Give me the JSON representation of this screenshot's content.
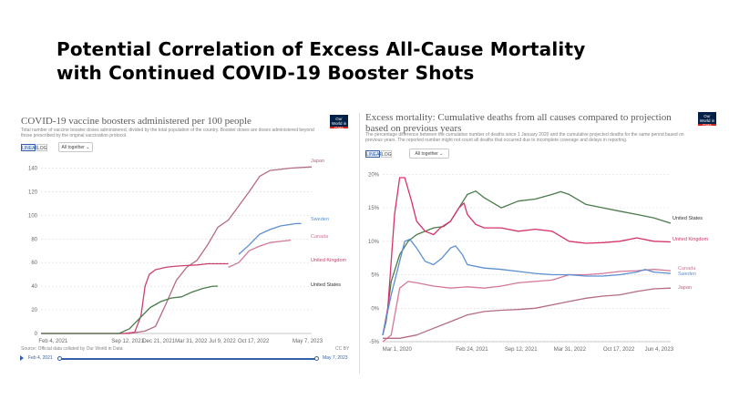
{
  "headline": {
    "line1": "Potential Correlation of Excess All-Cause Mortality",
    "line2": "with Continued COVID-19 Booster Shots"
  },
  "left": {
    "title": "COVID-19 vaccine boosters administered per 100 people",
    "subtitle": "Total number of vaccine booster doses administered, divided by the total population of the country. Booster doses are doses administered beyond those prescribed by the original vaccination protocol.",
    "btn_linear": "LINEAR",
    "btn_log": "LOG",
    "dropdown": "All together",
    "logo": "Our World in Data",
    "source": "Source: Official data collated by Our World in Data",
    "license": "CC BY",
    "slider_start": "Feb 4, 2021",
    "slider_end": "May 7, 2023",
    "colors": {
      "Japan": "#b56a88",
      "Sweden": "#5b8fcf",
      "Canada": "#d4789a",
      "United Kingdom": "#c9436e",
      "United States": "#4b7b4b"
    }
  },
  "right": {
    "title": "Excess mortality: Cumulative deaths from all causes compared to projection based on previous years",
    "subtitle": "The percentage difference between the cumulative number of deaths since 1 January 2020 and the cumulative projected deaths for the same period based on previous years. The reported number might not count all deaths that occurred due to incomplete coverage and delays in reporting.",
    "btn_linear": "LINEAR",
    "btn_log": "LOG",
    "dropdown": "All together",
    "logo": "Our World in Data",
    "colors": {
      "United States": "#4b7b4b",
      "United Kingdom": "#d6336c",
      "Canada": "#d4789a",
      "Sweden": "#5b8fcf",
      "Japan": "#b56a88"
    }
  },
  "chart_data": [
    {
      "type": "line",
      "title": "COVID-19 vaccine boosters administered per 100 people",
      "xlabel": "",
      "ylabel": "",
      "x_ticks": [
        "Feb 4, 2021",
        "Sep 12, 2021",
        "Dec 21, 2021",
        "Mar 31, 2022",
        "Jul 9, 2022",
        "Oct 17, 2022",
        "May 7, 2023"
      ],
      "y_ticks": [
        0,
        20,
        40,
        60,
        80,
        100,
        120,
        140
      ],
      "ylim": [
        0,
        145
      ],
      "grid": true,
      "legend": "inline-right",
      "series": [
        {
          "name": "Japan",
          "points": [
            [
              0,
              0
            ],
            [
              8.5,
              0
            ],
            [
              10,
              2
            ],
            [
              11,
              6
            ],
            [
              12,
              25
            ],
            [
              13,
              45
            ],
            [
              14,
              56
            ],
            [
              15,
              62
            ],
            [
              16,
              75
            ],
            [
              17,
              90
            ],
            [
              18,
              96
            ],
            [
              19,
              108
            ],
            [
              20,
              120
            ],
            [
              21,
              133
            ],
            [
              22,
              138
            ],
            [
              24,
              140
            ],
            [
              26,
              141
            ]
          ]
        },
        {
          "name": "Sweden",
          "points": [
            [
              19,
              67
            ],
            [
              20,
              75
            ],
            [
              21,
              84
            ],
            [
              22,
              88
            ],
            [
              23,
              91
            ],
            [
              24.5,
              93
            ],
            [
              25,
              93
            ]
          ]
        },
        {
          "name": "Canada",
          "points": [
            [
              18,
              56
            ],
            [
              19,
              60
            ],
            [
              20,
              70
            ],
            [
              21,
              74
            ],
            [
              22,
              77
            ],
            [
              23,
              78
            ],
            [
              24,
              79
            ]
          ]
        },
        {
          "name": "United Kingdom",
          "points": [
            [
              0,
              0
            ],
            [
              8,
              0
            ],
            [
              9,
              1
            ],
            [
              9.6,
              15
            ],
            [
              10,
              40
            ],
            [
              10.4,
              50
            ],
            [
              11,
              54
            ],
            [
              12,
              56
            ],
            [
              13,
              57
            ],
            [
              14,
              57.5
            ],
            [
              15,
              58
            ],
            [
              16,
              59
            ],
            [
              17,
              59
            ],
            [
              18,
              59
            ]
          ]
        },
        {
          "name": "United States",
          "points": [
            [
              0,
              0
            ],
            [
              7.5,
              0
            ],
            [
              8.5,
              4
            ],
            [
              9.5,
              13
            ],
            [
              10.5,
              22
            ],
            [
              11.5,
              27
            ],
            [
              12.5,
              30
            ],
            [
              13.5,
              31
            ],
            [
              14.5,
              35
            ],
            [
              15.5,
              38
            ],
            [
              16.5,
              40
            ],
            [
              17,
              40
            ]
          ]
        }
      ]
    },
    {
      "type": "line",
      "title": "Excess mortality: Cumulative deaths from all causes compared to projection based on previous years",
      "xlabel": "",
      "ylabel": "",
      "x_ticks": [
        "Mar 1, 2020",
        "Feb 24, 2021",
        "Sep 12, 2021",
        "Mar 31, 2022",
        "Oct 17, 2022",
        "Jun 4, 2023"
      ],
      "y_ticks": [
        "-5%",
        "0%",
        "5%",
        "10%",
        "15%",
        "20%"
      ],
      "ylim": [
        -5,
        21
      ],
      "grid": true,
      "legend": "inline-right",
      "series": [
        {
          "name": "United States",
          "points": [
            [
              0,
              -4
            ],
            [
              0.2,
              -2
            ],
            [
              0.5,
              4
            ],
            [
              1,
              8
            ],
            [
              1.5,
              10
            ],
            [
              2,
              11
            ],
            [
              3,
              12
            ],
            [
              3.6,
              12.2
            ],
            [
              4,
              13
            ],
            [
              4.5,
              15
            ],
            [
              5,
              17
            ],
            [
              5.5,
              17.5
            ],
            [
              6,
              16.5
            ],
            [
              7,
              15
            ],
            [
              8,
              16
            ],
            [
              9,
              16.3
            ],
            [
              10,
              17
            ],
            [
              10.5,
              17.4
            ],
            [
              11,
              17
            ],
            [
              12,
              15.5
            ],
            [
              13,
              15
            ],
            [
              14,
              14.5
            ],
            [
              15,
              14
            ],
            [
              16,
              13.5
            ],
            [
              17,
              12.7
            ]
          ]
        },
        {
          "name": "United Kingdom",
          "points": [
            [
              0,
              -4
            ],
            [
              0.3,
              0
            ],
            [
              0.7,
              14
            ],
            [
              1,
              19.5
            ],
            [
              1.3,
              19.5
            ],
            [
              1.7,
              16
            ],
            [
              2,
              13
            ],
            [
              2.5,
              11.5
            ],
            [
              3,
              11
            ],
            [
              3.4,
              12
            ],
            [
              4,
              13
            ],
            [
              4.5,
              15
            ],
            [
              4.8,
              15.7
            ],
            [
              5,
              14
            ],
            [
              5.5,
              12.5
            ],
            [
              6,
              12
            ],
            [
              7,
              12
            ],
            [
              8,
              11.5
            ],
            [
              9,
              11.8
            ],
            [
              10,
              11.5
            ],
            [
              11,
              10
            ],
            [
              12,
              9.7
            ],
            [
              13,
              9.8
            ],
            [
              14,
              10
            ],
            [
              15,
              10.5
            ],
            [
              16,
              10
            ],
            [
              17,
              9.9
            ]
          ]
        },
        {
          "name": "Canada",
          "points": [
            [
              0,
              -5
            ],
            [
              0.5,
              -4
            ],
            [
              1,
              3
            ],
            [
              1.5,
              4
            ],
            [
              2,
              3.8
            ],
            [
              3,
              3.3
            ],
            [
              4,
              3
            ],
            [
              5,
              3.2
            ],
            [
              6,
              3
            ],
            [
              7,
              3.3
            ],
            [
              8,
              3.8
            ],
            [
              9,
              4
            ],
            [
              10,
              4.2
            ],
            [
              11,
              5
            ],
            [
              12,
              5
            ],
            [
              13,
              5.2
            ],
            [
              14,
              5.5
            ],
            [
              15,
              5.6
            ],
            [
              16,
              5.8
            ],
            [
              17,
              5.6
            ]
          ]
        },
        {
          "name": "Sweden",
          "points": [
            [
              0,
              -4
            ],
            [
              0.5,
              2
            ],
            [
              1,
              7
            ],
            [
              1.3,
              10
            ],
            [
              1.6,
              10.3
            ],
            [
              2,
              9
            ],
            [
              2.5,
              7
            ],
            [
              3,
              6.5
            ],
            [
              3.5,
              7.5
            ],
            [
              4,
              9
            ],
            [
              4.3,
              9.3
            ],
            [
              4.7,
              8
            ],
            [
              5,
              6.5
            ],
            [
              6,
              6
            ],
            [
              7,
              5.8
            ],
            [
              8,
              5.5
            ],
            [
              9,
              5.2
            ],
            [
              10,
              5
            ],
            [
              11,
              5
            ],
            [
              12,
              4.8
            ],
            [
              13,
              4.8
            ],
            [
              14,
              5
            ],
            [
              15,
              5.4
            ],
            [
              15.5,
              5.8
            ],
            [
              16,
              5.4
            ],
            [
              17,
              5.2
            ]
          ]
        },
        {
          "name": "Japan",
          "points": [
            [
              0,
              -4.5
            ],
            [
              1,
              -4.5
            ],
            [
              2,
              -4
            ],
            [
              3,
              -3
            ],
            [
              4,
              -2
            ],
            [
              5,
              -1
            ],
            [
              6,
              -0.5
            ],
            [
              7,
              -0.3
            ],
            [
              8,
              -0.2
            ],
            [
              9,
              0
            ],
            [
              10,
              0.5
            ],
            [
              11,
              1
            ],
            [
              12,
              1.5
            ],
            [
              13,
              1.8
            ],
            [
              14,
              2
            ],
            [
              15,
              2.5
            ],
            [
              16,
              2.9
            ],
            [
              17,
              3
            ]
          ]
        }
      ]
    }
  ]
}
